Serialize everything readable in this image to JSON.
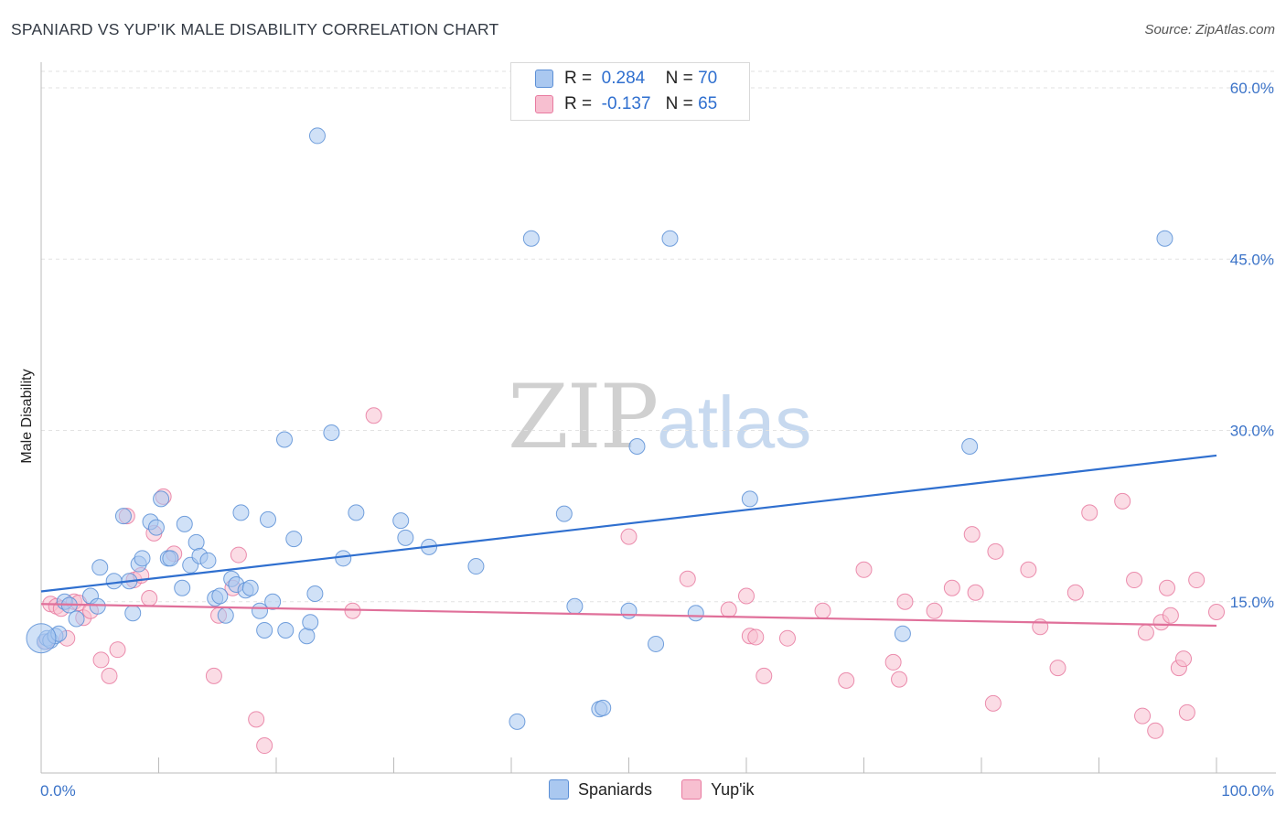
{
  "header": {
    "title": "SPANIARD VS YUP'IK MALE DISABILITY CORRELATION CHART",
    "source": "Source: ZipAtlas.com"
  },
  "legend": {
    "rows": [
      {
        "r_label": "R =",
        "r_value": "0.284",
        "n_label": "N =",
        "n_value": "70",
        "color": "#aac8f0"
      },
      {
        "r_label": "R =",
        "r_value": "-0.137",
        "n_label": "N =",
        "n_value": "65",
        "color": "#f7bfd0"
      }
    ]
  },
  "bottom_legend": {
    "items": [
      {
        "label": "Spaniards",
        "color": "#aac8f0"
      },
      {
        "label": "Yup'ik",
        "color": "#f7bfd0"
      }
    ]
  },
  "watermark": {
    "zip": "ZIP",
    "atlas": "atlas"
  },
  "chart_data": {
    "type": "scatter",
    "title": "SPANIARD VS YUP'IK MALE DISABILITY CORRELATION CHART",
    "xlabel": "",
    "ylabel": "Male Disability",
    "xlim": [
      0,
      100
    ],
    "ylim": [
      0,
      60
    ],
    "y_tick_labels": [
      "60.0%",
      "45.0%",
      "30.0%",
      "15.0%"
    ],
    "y_tick_values": [
      60,
      45,
      30,
      15
    ],
    "x_tick_labels": [
      "0.0%",
      "100.0%"
    ],
    "grid": true,
    "legend_position": "top-center",
    "series": [
      {
        "name": "Spaniards",
        "color": "#5b8fd6",
        "fill": "#aac8f0",
        "trend": {
          "x": [
            0,
            100
          ],
          "y": [
            15.9,
            27.8
          ]
        },
        "points": [
          [
            0.3,
            11.5
          ],
          [
            0.5,
            11.8
          ],
          [
            0.8,
            11.6
          ],
          [
            1.2,
            12.0
          ],
          [
            1.5,
            12.2
          ],
          [
            2.0,
            15.0
          ],
          [
            2.4,
            14.7
          ],
          [
            3.0,
            13.5
          ],
          [
            4.2,
            15.5
          ],
          [
            4.8,
            14.6
          ],
          [
            5.0,
            18.0
          ],
          [
            6.2,
            16.8
          ],
          [
            7.0,
            22.5
          ],
          [
            7.5,
            16.8
          ],
          [
            7.8,
            14.0
          ],
          [
            8.3,
            18.3
          ],
          [
            8.6,
            18.8
          ],
          [
            9.3,
            22.0
          ],
          [
            9.8,
            21.5
          ],
          [
            10.2,
            24.0
          ],
          [
            10.8,
            18.8
          ],
          [
            11.0,
            18.8
          ],
          [
            12.0,
            16.2
          ],
          [
            12.2,
            21.8
          ],
          [
            12.7,
            18.2
          ],
          [
            13.2,
            20.2
          ],
          [
            13.5,
            19.0
          ],
          [
            14.2,
            18.6
          ],
          [
            14.8,
            15.3
          ],
          [
            15.2,
            15.5
          ],
          [
            15.7,
            13.8
          ],
          [
            16.2,
            17.0
          ],
          [
            16.6,
            16.5
          ],
          [
            17.0,
            22.8
          ],
          [
            17.4,
            16.0
          ],
          [
            17.8,
            16.2
          ],
          [
            18.6,
            14.2
          ],
          [
            19.0,
            12.5
          ],
          [
            19.3,
            22.2
          ],
          [
            19.7,
            15.0
          ],
          [
            20.7,
            29.2
          ],
          [
            20.8,
            12.5
          ],
          [
            21.5,
            20.5
          ],
          [
            22.6,
            12.0
          ],
          [
            22.9,
            13.2
          ],
          [
            23.3,
            15.7
          ],
          [
            23.5,
            55.8
          ],
          [
            24.7,
            29.8
          ],
          [
            25.7,
            18.8
          ],
          [
            26.8,
            22.8
          ],
          [
            30.6,
            22.1
          ],
          [
            31.0,
            20.6
          ],
          [
            33.0,
            19.8
          ],
          [
            37.0,
            18.1
          ],
          [
            40.5,
            4.5
          ],
          [
            41.7,
            46.8
          ],
          [
            44.5,
            22.7
          ],
          [
            45.4,
            14.6
          ],
          [
            47.5,
            5.6
          ],
          [
            47.8,
            5.7
          ],
          [
            50.0,
            14.2
          ],
          [
            50.7,
            28.6
          ],
          [
            52.3,
            11.3
          ],
          [
            53.5,
            46.8
          ],
          [
            55.7,
            14.0
          ],
          [
            60.3,
            24.0
          ],
          [
            73.3,
            12.2
          ],
          [
            79.0,
            28.6
          ],
          [
            95.6,
            46.8
          ],
          [
            0.0,
            11.8
          ]
        ]
      },
      {
        "name": "Yup'ik",
        "color": "#e87aa0",
        "fill": "#f7bfd0",
        "trend": {
          "x": [
            0,
            100
          ],
          "y": [
            14.8,
            12.9
          ]
        },
        "points": [
          [
            0.4,
            11.5
          ],
          [
            0.8,
            14.8
          ],
          [
            1.3,
            14.6
          ],
          [
            1.7,
            14.4
          ],
          [
            2.2,
            11.8
          ],
          [
            2.8,
            15.0
          ],
          [
            3.2,
            14.9
          ],
          [
            3.6,
            13.6
          ],
          [
            4.2,
            14.2
          ],
          [
            5.1,
            9.9
          ],
          [
            5.8,
            8.5
          ],
          [
            6.5,
            10.8
          ],
          [
            7.3,
            22.5
          ],
          [
            7.9,
            16.9
          ],
          [
            8.5,
            17.3
          ],
          [
            9.2,
            15.3
          ],
          [
            9.6,
            21.0
          ],
          [
            10.4,
            24.2
          ],
          [
            11.3,
            19.2
          ],
          [
            14.7,
            8.5
          ],
          [
            15.1,
            13.8
          ],
          [
            16.3,
            16.2
          ],
          [
            16.8,
            19.1
          ],
          [
            18.3,
            4.7
          ],
          [
            19.0,
            2.4
          ],
          [
            26.5,
            14.2
          ],
          [
            28.3,
            31.3
          ],
          [
            50.0,
            20.7
          ],
          [
            55.0,
            17.0
          ],
          [
            58.5,
            14.3
          ],
          [
            60.0,
            15.5
          ],
          [
            60.3,
            12.0
          ],
          [
            60.8,
            11.9
          ],
          [
            61.5,
            8.5
          ],
          [
            63.5,
            11.8
          ],
          [
            66.5,
            14.2
          ],
          [
            68.5,
            8.1
          ],
          [
            70.0,
            17.8
          ],
          [
            72.5,
            9.7
          ],
          [
            73.0,
            8.2
          ],
          [
            73.5,
            15.0
          ],
          [
            76.0,
            14.2
          ],
          [
            77.5,
            16.2
          ],
          [
            79.2,
            20.9
          ],
          [
            79.5,
            15.8
          ],
          [
            81.0,
            6.1
          ],
          [
            81.2,
            19.4
          ],
          [
            84.0,
            17.8
          ],
          [
            85.0,
            12.8
          ],
          [
            86.5,
            9.2
          ],
          [
            88.0,
            15.8
          ],
          [
            92.0,
            23.8
          ],
          [
            93.0,
            16.9
          ],
          [
            93.7,
            5.0
          ],
          [
            94.0,
            12.3
          ],
          [
            94.8,
            3.7
          ],
          [
            95.3,
            13.2
          ],
          [
            95.8,
            16.2
          ],
          [
            96.1,
            13.8
          ],
          [
            96.8,
            9.2
          ],
          [
            97.2,
            10.0
          ],
          [
            97.5,
            5.3
          ],
          [
            98.3,
            16.9
          ],
          [
            100.0,
            14.1
          ],
          [
            89.2,
            22.8
          ]
        ]
      }
    ]
  }
}
